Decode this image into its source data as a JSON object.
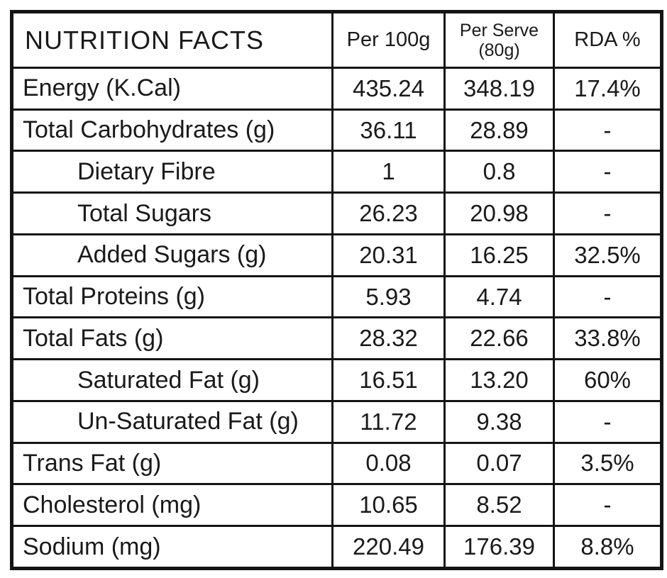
{
  "nutrition_table": {
    "title": "NUTRITION FACTS",
    "header": {
      "per_100g": "Per 100g",
      "per_serve_line1": "Per Serve",
      "per_serve_line2": "(80g)",
      "rda": "RDA %"
    },
    "rows": [
      {
        "label": "Energy (K.Cal)",
        "per_100g": "435.24",
        "per_serve": "348.19",
        "rda": "17.4%"
      },
      {
        "label": "Total Carbohydrates (g)",
        "per_100g": "36.11",
        "per_serve": "28.89",
        "rda": "-"
      },
      {
        "label": "Dietary Fibre",
        "per_100g": "1",
        "per_serve": "0.8",
        "rda": "-"
      },
      {
        "label": "Total Sugars",
        "per_100g": "26.23",
        "per_serve": "20.98",
        "rda": "-"
      },
      {
        "label": "Added Sugars (g)",
        "per_100g": "20.31",
        "per_serve": "16.25",
        "rda": "32.5%"
      },
      {
        "label": "Total Proteins (g)",
        "per_100g": "5.93",
        "per_serve": "4.74",
        "rda": "-"
      },
      {
        "label": "Total Fats (g)",
        "per_100g": "28.32",
        "per_serve": "22.66",
        "rda": "33.8%"
      },
      {
        "label": "Saturated Fat (g)",
        "per_100g": "16.51",
        "per_serve": "13.20",
        "rda": "60%"
      },
      {
        "label": "Un-Saturated Fat (g)",
        "per_100g": "11.72",
        "per_serve": "9.38",
        "rda": "-"
      },
      {
        "label": "Trans Fat (g)",
        "per_100g": "0.08",
        "per_serve": "0.07",
        "rda": "3.5%"
      },
      {
        "label": "Cholesterol (mg)",
        "per_100g": "10.65",
        "per_serve": "8.52",
        "rda": "-"
      },
      {
        "label": "Sodium (mg)",
        "per_100g": "220.49",
        "per_serve": "176.39",
        "rda": "8.8%"
      }
    ],
    "colors": {
      "border": "#141414",
      "text": "#1a1a1a",
      "background": "#ffffff"
    }
  }
}
